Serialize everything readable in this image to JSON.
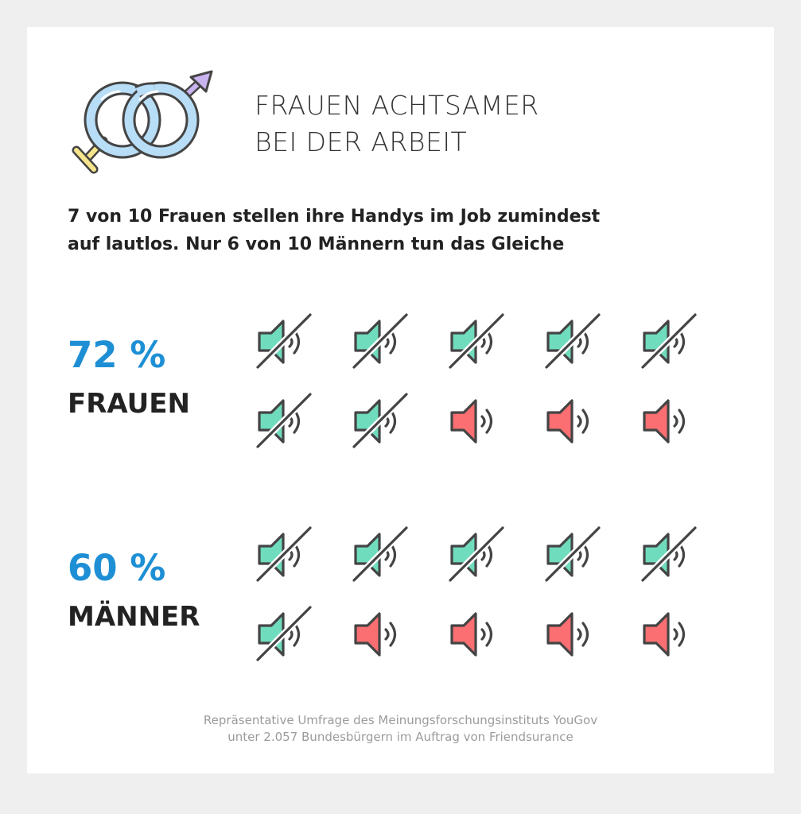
{
  "title": {
    "line1": "FRAUEN ACHTSAMER",
    "line2": "BEI DER ARBEIT"
  },
  "subtitle": {
    "line1": "7 von 10 Frauen stellen ihre Handys im Job zumindest",
    "line2": "auf lautlos. Nur 6 von 10 Männern tun das Gleiche"
  },
  "colors": {
    "background": "#efefef",
    "card": "#ffffff",
    "percent": "#1e8fd4",
    "muted_icon": "#6fdcbd",
    "sound_icon": "#fb6f72",
    "outline": "#444444",
    "male_symbol": "#c9b4f0",
    "female_symbol": "#f6e58d",
    "ring": "#b8ddf6"
  },
  "emblem_icon": "gender-symbols-rings-icon",
  "chart_data": {
    "type": "table",
    "groups": [
      {
        "label": "FRAUEN",
        "percent_label": "72 %",
        "value": 72,
        "muted_icons": 7,
        "total_icons": 10
      },
      {
        "label": "MÄNNER",
        "percent_label": "60 %",
        "value": 60,
        "muted_icons": 6,
        "total_icons": 10
      }
    ],
    "icon_legend": {
      "muted": "speaker-muted-icon",
      "sound": "speaker-sound-icon"
    }
  },
  "source": {
    "line1": "Repräsentative Umfrage des Meinungsforschungsinstituts YouGov",
    "line2": "unter 2.057 Bundesbürgern im Auftrag von Friendsurance"
  }
}
